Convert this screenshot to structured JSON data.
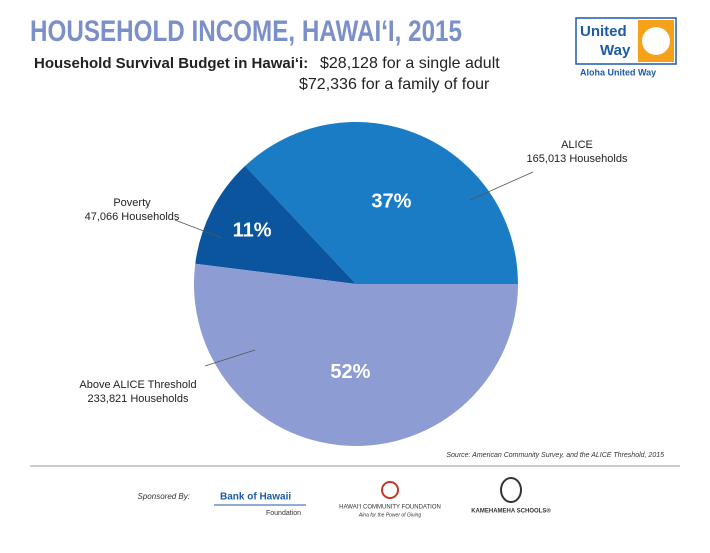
{
  "header": {
    "title": "HOUSEHOLD INCOME, HAWAI‘I, 2015",
    "subtitle": "Household Survival Budget in Hawai‘i:",
    "budget_lines": [
      "$28,128 for a single adult",
      "$72,336 for a family of four"
    ],
    "logo": {
      "line1": "United",
      "line2": "Way",
      "caption": "Aloha United Way"
    }
  },
  "chart_data": {
    "type": "pie",
    "categories": [
      "ALICE",
      "Poverty",
      "Above ALICE Threshold"
    ],
    "values": [
      37,
      11,
      52
    ],
    "value_labels": [
      "37%",
      "11%",
      "52%"
    ],
    "category_notes": [
      "165,013 Households",
      "47,066 Households",
      "233,821 Households"
    ],
    "colors": [
      "#1b7cc6",
      "#0b559f",
      "#8d9dd3"
    ]
  },
  "footer": {
    "source": "Source: American Community Survey, and the ALICE Threshold, 2015",
    "sponsored_by": "Sponsored By:",
    "sponsors": [
      {
        "name": "Bank of Hawaii",
        "sub": "Foundation"
      },
      {
        "name": "HAWAI‘I COMMUNITY FOUNDATION",
        "sub": "Aina for the Power of Giving"
      },
      {
        "name": "KAMEHAMEHA SCHOOLS®"
      }
    ]
  }
}
